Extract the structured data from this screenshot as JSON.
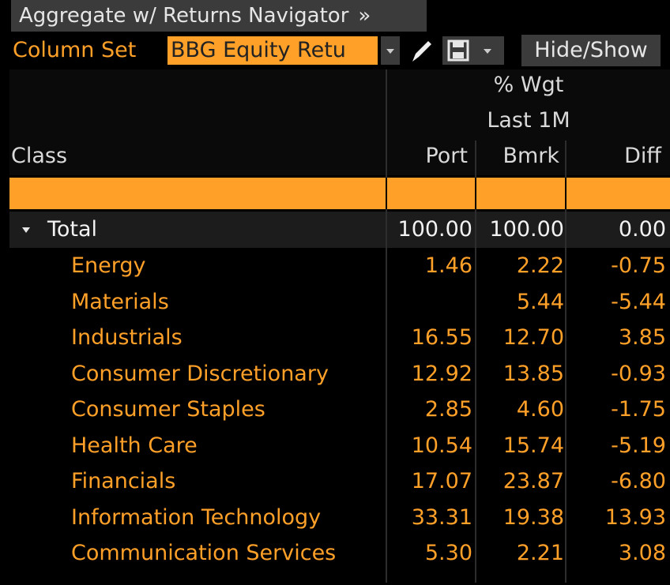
{
  "tab": {
    "title": "Aggregate w/ Returns Navigator",
    "chevron": "»"
  },
  "toolbar": {
    "column_set_label": "Column Set",
    "column_set_value": "BBG Equity Retu",
    "hide_show": "Hide/Show"
  },
  "table": {
    "group_header": "% Wgt",
    "period_header": "Last 1M",
    "class_header": "Class",
    "columns": [
      "Port",
      "Bmrk",
      "Diff"
    ],
    "total": {
      "label": "Total",
      "cells": [
        "100.00",
        "100.00",
        "0.00"
      ]
    },
    "rows": [
      {
        "label": "Energy",
        "cells": [
          "1.46",
          "2.22",
          "-0.75"
        ]
      },
      {
        "label": "Materials",
        "cells": [
          null,
          "5.44",
          "-5.44"
        ]
      },
      {
        "label": "Industrials",
        "cells": [
          "16.55",
          "12.70",
          "3.85"
        ]
      },
      {
        "label": "Consumer Discretionary",
        "cells": [
          "12.92",
          "13.85",
          "-0.93"
        ]
      },
      {
        "label": "Consumer Staples",
        "cells": [
          "2.85",
          "4.60",
          "-1.75"
        ]
      },
      {
        "label": "Health Care",
        "cells": [
          "10.54",
          "15.74",
          "-5.19"
        ]
      },
      {
        "label": "Financials",
        "cells": [
          "17.07",
          "23.87",
          "-6.80"
        ]
      },
      {
        "label": "Information Technology",
        "cells": [
          "33.31",
          "19.38",
          "13.93"
        ]
      },
      {
        "label": "Communication Services",
        "cells": [
          "5.30",
          "2.21",
          "3.08"
        ]
      }
    ]
  }
}
